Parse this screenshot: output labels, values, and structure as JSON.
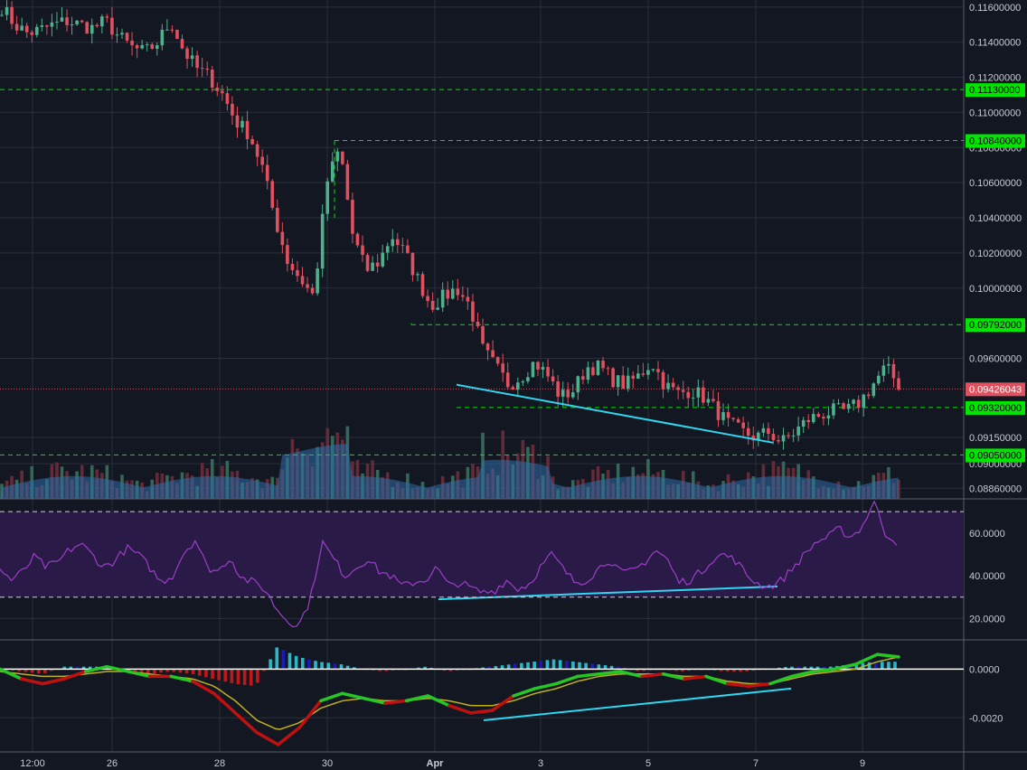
{
  "colors": {
    "background": "#131722",
    "grid": "#2a2e39",
    "up": "#4fb08e",
    "down": "#e0505e",
    "level": "#00e600",
    "trend": "#2fd6f0",
    "rsi_line": "#9c3fc7",
    "rsi_band": "#2a1a48",
    "fast_line": "#26c626",
    "slow_line": "#c0b020",
    "divergence_line": "#c01010",
    "hist_pos": "#2ab8c8",
    "hist_neg": "#c01818",
    "hist_blue": "#1a1ab8"
  },
  "chart_data": {
    "type": "candlestick",
    "price_axis": {
      "range": [
        0.088,
        0.1164
      ],
      "ticks": [
        "0.11600000",
        "0.11400000",
        "0.11200000",
        "0.11000000",
        "0.10800000",
        "0.10600000",
        "0.10400000",
        "0.10200000",
        "0.10000000",
        "0.09600000",
        "0.09150000",
        "0.09000000",
        "0.08860000"
      ]
    },
    "time_axis": {
      "labels": [
        "12:00",
        "26",
        "28",
        "30",
        "Apr",
        "3",
        "5",
        "7",
        "9"
      ]
    },
    "levels": [
      "0.11130000",
      "0.10840000",
      "0.09792000",
      "0.09320000",
      "0.09050000"
    ],
    "current_price": "0.09426043",
    "price_path": [
      0.116,
      0.115,
      0.1145,
      0.1147,
      0.115,
      0.1152,
      0.115,
      0.1148,
      0.1152,
      0.1143,
      0.1137,
      0.1134,
      0.114,
      0.1152,
      0.1135,
      0.1125,
      0.112,
      0.111,
      0.1095,
      0.1088,
      0.107,
      0.104,
      0.1015,
      0.1005,
      0.0995,
      0.106,
      0.108,
      0.103,
      0.101,
      0.1015,
      0.103,
      0.102,
      0.1005,
      0.099,
      0.0995,
      0.1,
      0.099,
      0.0965,
      0.0955,
      0.0945,
      0.095,
      0.0958,
      0.095,
      0.0938,
      0.0942,
      0.0955,
      0.0955,
      0.0948,
      0.0945,
      0.095,
      0.0958,
      0.0945,
      0.094,
      0.0942,
      0.0938,
      0.093,
      0.0922,
      0.0918,
      0.0915,
      0.0918,
      0.0912,
      0.0918,
      0.0925,
      0.0928,
      0.093,
      0.093,
      0.0935,
      0.0945,
      0.0955,
      0.0945
    ],
    "rsi": {
      "ticks": [
        "60.0000",
        "40.0000",
        "20.0000"
      ],
      "range": [
        10,
        76
      ],
      "upper_band": 70,
      "lower_band": 30,
      "path": [
        43,
        38,
        42,
        49,
        44,
        46,
        52,
        55,
        50,
        44,
        47,
        53,
        50,
        44,
        37,
        40,
        51,
        57,
        44,
        42,
        49,
        39,
        37,
        34,
        25,
        19,
        17,
        29,
        56,
        48,
        40,
        44,
        48,
        42,
        40,
        35,
        37,
        38,
        44,
        35,
        37,
        34,
        32,
        33,
        38,
        34,
        36,
        44,
        50,
        43,
        37,
        38,
        43,
        48,
        41,
        42,
        46,
        52,
        48,
        37,
        38,
        42,
        48,
        50,
        47,
        40,
        36,
        35,
        38,
        44,
        50,
        56,
        58,
        62,
        58,
        63,
        75,
        60,
        56
      ]
    },
    "macd": {
      "ticks": [
        "0.0000",
        "-0.0020"
      ],
      "range": [
        -0.0034,
        0.0012
      ],
      "fast": [
        0,
        -0.0004,
        -0.0006,
        -0.0004,
        -0.0001,
        0.0001,
        -0.0001,
        -0.0003,
        -0.0003,
        -0.0005,
        -0.001,
        -0.0018,
        -0.0026,
        -0.0031,
        -0.0024,
        -0.0013,
        -0.001,
        -0.0012,
        -0.0014,
        -0.0013,
        -0.0011,
        -0.0015,
        -0.0018,
        -0.0017,
        -0.0011,
        -0.0008,
        -0.0006,
        -0.0003,
        -0.0002,
        -0.0001,
        -0.0003,
        -0.0002,
        -0.0004,
        -0.0003,
        -0.0006,
        -0.0007,
        -0.0006,
        -0.0003,
        -0.0001,
        0.0,
        0.0002,
        0.0006,
        0.0005
      ],
      "slow": [
        -0.0001,
        -0.0002,
        -0.0003,
        -0.0003,
        -0.0002,
        -0.0001,
        -0.0001,
        -0.0002,
        -0.0003,
        -0.0004,
        -0.0007,
        -0.0013,
        -0.0021,
        -0.0025,
        -0.0022,
        -0.0016,
        -0.0013,
        -0.0012,
        -0.0013,
        -0.0013,
        -0.0012,
        -0.0013,
        -0.0015,
        -0.0015,
        -0.0013,
        -0.001,
        -0.0008,
        -0.0005,
        -0.0003,
        -0.0002,
        -0.0002,
        -0.0002,
        -0.0003,
        -0.0003,
        -0.0005,
        -0.0006,
        -0.0006,
        -0.0004,
        -0.0002,
        -0.0001,
        0.0,
        0.0003,
        0.0005
      ],
      "histogram": [
        0.0,
        -0.0001,
        -0.0002,
        0.0001,
        0.0001,
        0.0001,
        -0.0001,
        -0.0002,
        -0.0001,
        -0.0002,
        -0.0004,
        -0.0006,
        -0.0007,
        0.0009,
        0.0005,
        0.0003,
        0.0002,
        0.0,
        -0.0001,
        0.0,
        0.0001,
        -0.0001,
        0.0,
        0.0001,
        0.0002,
        0.0003,
        0.0004,
        0.0003,
        0.0002,
        0.0001,
        -0.0001,
        0.0,
        -0.0001,
        0.0,
        -0.0001,
        -0.0001,
        0.0,
        0.0001,
        0.0001,
        0.0001,
        0.0002,
        0.0003,
        0.0003
      ]
    }
  }
}
